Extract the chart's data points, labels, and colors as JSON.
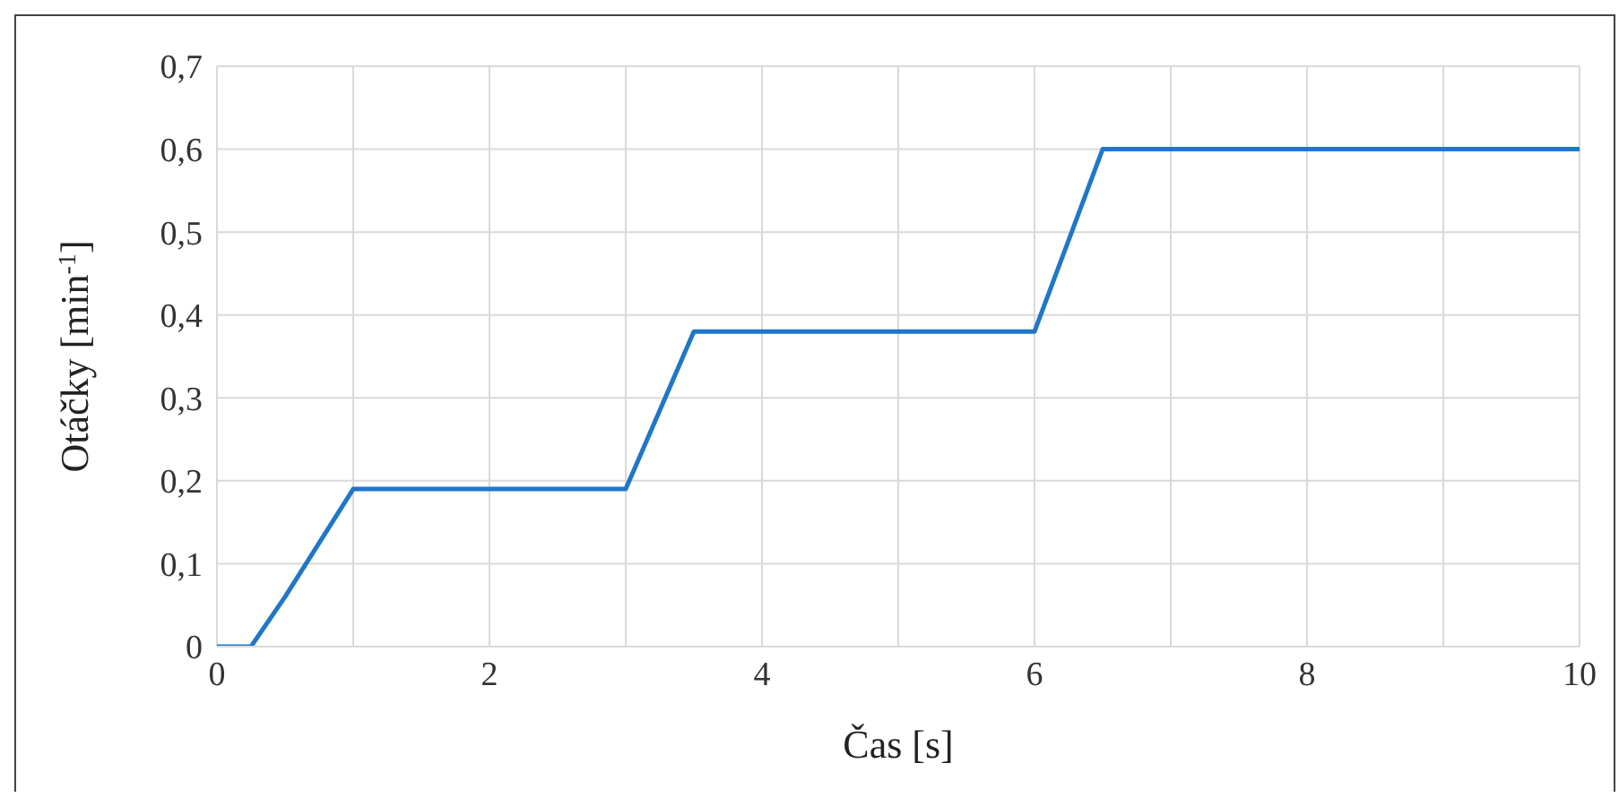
{
  "chart_data": {
    "type": "line",
    "xlabel": "Čas [s]",
    "ylabel": "Otáčky [min$^{-1}$]",
    "x": [
      0,
      0.25,
      0.5,
      1,
      3,
      3.5,
      6,
      6.5,
      10
    ],
    "series": [
      {
        "color": "#1f77c8",
        "values": [
          0,
          0,
          0.06,
          0.19,
          0.19,
          0.38,
          0.38,
          0.6,
          0.6
        ]
      }
    ],
    "xlim": [
      0,
      10
    ],
    "xticks": [
      0,
      {
        "value": 1,
        "label": null
      },
      2,
      {
        "value": 3,
        "label": null
      },
      4,
      {
        "value": 5,
        "label": null
      },
      6,
      {
        "value": 7,
        "label": null
      },
      8,
      {
        "value": 9,
        "label": null
      },
      10
    ],
    "ylim": [
      0,
      0.7
    ],
    "yticks": [
      {
        "value": 0,
        "label": "0"
      },
      {
        "value": 0.1,
        "label": "0,1"
      },
      {
        "value": 0.2,
        "label": "0,2"
      },
      {
        "value": 0.3,
        "label": "0,3"
      },
      {
        "value": 0.4,
        "label": "0,4"
      },
      {
        "value": 0.5,
        "label": "0,5"
      },
      {
        "value": 0.6,
        "label": "0,6"
      },
      {
        "value": 0.7,
        "label": "0,7"
      }
    ],
    "grid": true,
    "legend": false,
    "marker": "none",
    "line_style": "solid"
  }
}
